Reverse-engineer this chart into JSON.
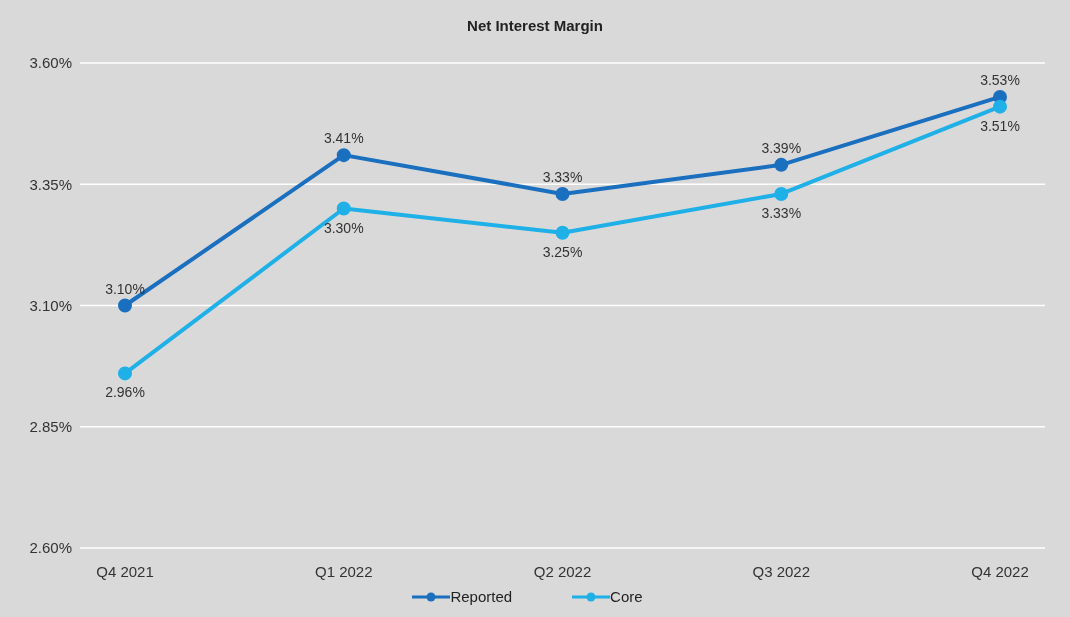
{
  "chart_data": {
    "type": "line",
    "title": "Net Interest Margin",
    "categories": [
      "Q4 2021",
      "Q1 2022",
      "Q2 2022",
      "Q3 2022",
      "Q4 2022"
    ],
    "series": [
      {
        "name": "Reported",
        "color": "#1a6fbf",
        "values": [
          3.1,
          3.41,
          3.33,
          3.39,
          3.53
        ],
        "value_labels": [
          "3.10%",
          "3.41%",
          "3.33%",
          "3.39%",
          "3.53%"
        ]
      },
      {
        "name": "Core",
        "color": "#1fb0e8",
        "values": [
          2.96,
          3.3,
          3.25,
          3.33,
          3.51
        ],
        "value_labels": [
          "2.96%",
          "3.30%",
          "3.25%",
          "3.33%",
          "3.51%"
        ]
      }
    ],
    "ylim": [
      2.6,
      3.6
    ],
    "yticks": [
      {
        "value": 2.6,
        "label": "2.60%"
      },
      {
        "value": 2.85,
        "label": "2.85%"
      },
      {
        "value": 3.1,
        "label": "3.10%"
      },
      {
        "value": 3.35,
        "label": "3.35%"
      },
      {
        "value": 3.6,
        "label": "3.60%"
      }
    ],
    "grid": "y",
    "legend": "bottom",
    "marker": "circle",
    "line_style": "solid"
  }
}
